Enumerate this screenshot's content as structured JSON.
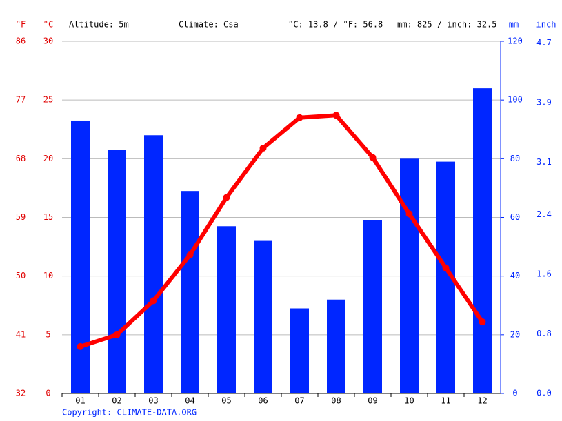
{
  "chart_data": {
    "type": "bar",
    "y3_label": "°F",
    "y_label": "°C",
    "y2_label": "mm",
    "y4_label": "inch",
    "annotations": [
      "Altitude: 5m",
      "Climate: Csa",
      "°C: 13.8 / °F: 56.8",
      "mm: 825 / inch: 32.5"
    ],
    "source": "Copyright: CLIMATE-DATA.ORG",
    "categories": [
      "01",
      "02",
      "03",
      "04",
      "05",
      "06",
      "07",
      "08",
      "09",
      "10",
      "11",
      "12"
    ],
    "series": [
      {
        "type": "bar",
        "axis": "y2",
        "color": "#0026ff",
        "values": [
          93,
          83,
          88,
          69,
          57,
          52,
          29,
          32,
          59,
          80,
          79,
          104
        ]
      },
      {
        "type": "line",
        "color": "#ff0000",
        "values": [
          4.0,
          5.0,
          7.9,
          11.8,
          16.7,
          20.9,
          23.5,
          23.7,
          20.1,
          15.3,
          10.7,
          6.1
        ]
      }
    ],
    "ylim": [
      0,
      30
    ],
    "yticks": [
      0,
      5,
      10,
      15,
      20,
      25,
      30
    ],
    "y3lim": [
      32,
      86
    ],
    "y3ticks": [
      32,
      41,
      50,
      59,
      68,
      77,
      86
    ],
    "y2lim": [
      0,
      120
    ],
    "y2ticks": [
      0,
      20,
      40,
      60,
      80,
      100,
      120
    ],
    "y4lim": [
      0,
      4.724
    ],
    "y4ticks": [
      {
        "value": 0,
        "label": "0.0"
      },
      0.8,
      1.6,
      2.4,
      3.1,
      3.9,
      4.7
    ],
    "grid": true,
    "left_color": "#e00000",
    "right_color": "#0026ff"
  }
}
